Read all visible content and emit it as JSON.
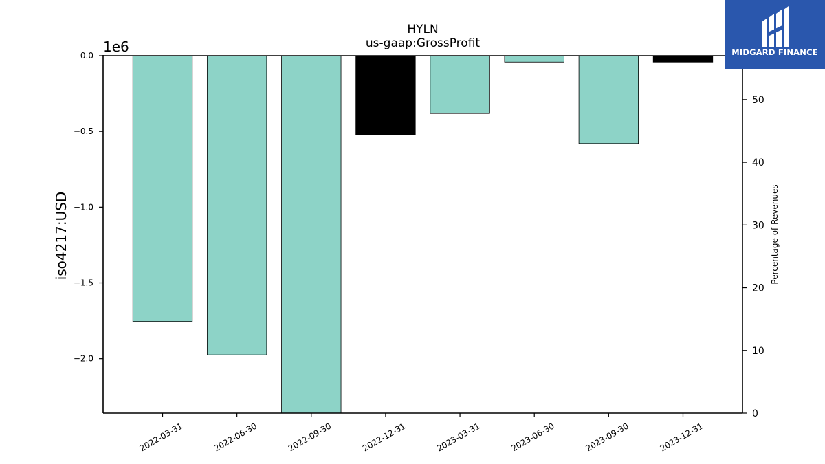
{
  "chart_data": {
    "type": "bar",
    "title": "HYLN",
    "subtitle": "us-gaap:GrossProfit",
    "ylabel": "iso4217:USD",
    "y2label": "Percentage of Revenues",
    "offset_label": "1e6",
    "categories": [
      "2022-03-31",
      "2022-06-30",
      "2022-09-30",
      "2022-12-31",
      "2023-03-31",
      "2023-06-30",
      "2023-09-30",
      "2023-12-31"
    ],
    "values": [
      -1755000,
      -1975000,
      -2360000,
      -523000,
      -382000,
      -42000,
      -580000,
      -42000
    ],
    "bar_colors": [
      "#8dd3c7",
      "#8dd3c7",
      "#8dd3c7",
      "#000000",
      "#8dd3c7",
      "#8dd3c7",
      "#8dd3c7",
      "#000000"
    ],
    "ylim": [
      -2360000,
      0
    ],
    "y_ticks": [
      0.0,
      -0.5,
      -1.0,
      -1.5,
      -2.0
    ],
    "y_tick_labels": [
      "0.0",
      "−0.5",
      "−1.0",
      "−1.5",
      "−2.0"
    ],
    "y2lim": [
      0,
      57
    ],
    "y2_ticks": [
      0,
      10,
      20,
      30,
      40,
      50
    ],
    "grid": false,
    "legend": "none"
  },
  "logo": {
    "text": "MIDGARD FINANCE",
    "bg_color": "#2a57ad",
    "icon": "midgard-logo-icon"
  }
}
